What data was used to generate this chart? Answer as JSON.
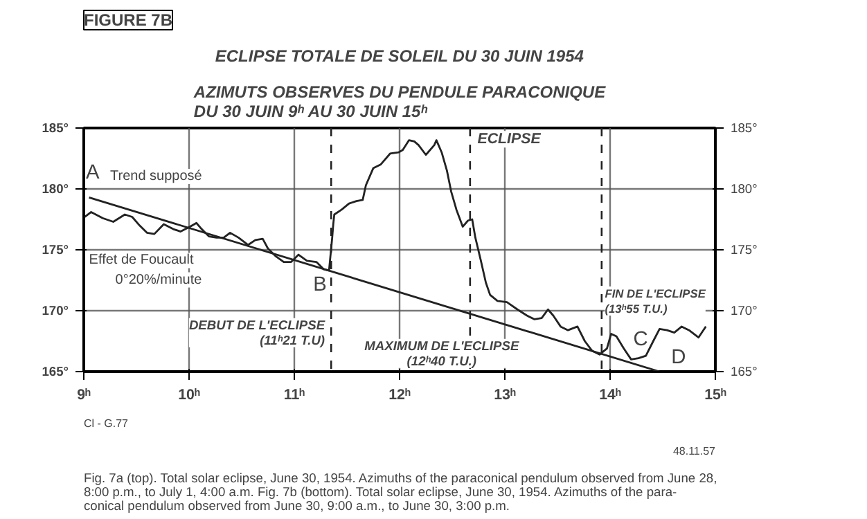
{
  "chart_data": {
    "type": "line",
    "title": "ECLIPSE TOTALE DE SOLEIL DU 30 JUIN 1954",
    "subtitle": "AZIMUTS OBSERVES DU PENDULE PARACONIQUE\nDU 30 JUIN 9ʰ AU 30 JUIN 15ʰ",
    "xlim": [
      9,
      15
    ],
    "ylim": [
      165,
      185
    ],
    "y2lim": [
      165,
      185
    ],
    "xticks": [
      {
        "value": 9,
        "label": "9ʰ"
      },
      {
        "value": 10,
        "label": "10ʰ"
      },
      {
        "value": 11,
        "label": "11ʰ"
      },
      {
        "value": 12,
        "label": "12ʰ"
      },
      {
        "value": 13,
        "label": "13ʰ"
      },
      {
        "value": 14,
        "label": "14ʰ"
      },
      {
        "value": 15,
        "label": "15ʰ"
      }
    ],
    "yticks": [
      {
        "value": 165,
        "label": "165°"
      },
      {
        "value": 170,
        "label": "170°"
      },
      {
        "value": 175,
        "label": "175°"
      },
      {
        "value": 180,
        "label": "180°"
      },
      {
        "value": 185,
        "label": "185°"
      }
    ],
    "y2ticks": [
      {
        "value": 165,
        "label": "165°"
      },
      {
        "value": 170,
        "label": "170°"
      },
      {
        "value": 175,
        "label": "175°"
      },
      {
        "value": 180,
        "label": "180°"
      },
      {
        "value": 185,
        "label": "185°"
      }
    ],
    "grid": true,
    "line_style": "solid",
    "series": [
      {
        "color": "#222222",
        "x": [
          9.01,
          9.07,
          9.18,
          9.28,
          9.39,
          9.46,
          9.53,
          9.6,
          9.67,
          9.76,
          9.85,
          9.92,
          10.01,
          10.07,
          10.12,
          10.19,
          10.26,
          10.33,
          10.39,
          10.47,
          10.56,
          10.63,
          10.7,
          10.75,
          10.82,
          10.9,
          10.97,
          11.04,
          11.12,
          11.21,
          11.28,
          11.33,
          11.36,
          11.37,
          11.38,
          11.45,
          11.52,
          11.59,
          11.65,
          11.68,
          11.75,
          11.82,
          11.91,
          11.99,
          12.03,
          12.09,
          12.14,
          12.18,
          12.25,
          12.33,
          12.35,
          12.4,
          12.45,
          12.49,
          12.54,
          12.6,
          12.65,
          12.69,
          12.72,
          12.77,
          12.82,
          12.86,
          12.93,
          13.02,
          13.12,
          13.21,
          13.28,
          13.35,
          13.41,
          13.46,
          13.53,
          13.6,
          13.69,
          13.76,
          13.83,
          13.9,
          13.97,
          14.01,
          14.06,
          14.13,
          14.2,
          14.27,
          14.34,
          14.41,
          14.47,
          14.54,
          14.61,
          14.68,
          14.75,
          14.84,
          14.91
        ],
        "values": [
          177.7,
          178.1,
          177.6,
          177.3,
          177.9,
          177.7,
          177.0,
          176.4,
          176.3,
          177.1,
          176.7,
          176.5,
          176.9,
          177.2,
          176.7,
          176.1,
          176.0,
          176.0,
          176.4,
          176.0,
          175.4,
          175.8,
          175.9,
          175.1,
          174.5,
          174.0,
          174.0,
          174.6,
          174.1,
          174.0,
          173.4,
          173.3,
          176.0,
          177.1,
          177.9,
          178.3,
          178.8,
          179.0,
          179.1,
          180.3,
          181.7,
          182.0,
          182.9,
          183.0,
          183.2,
          184.0,
          183.9,
          183.6,
          182.8,
          183.6,
          184.0,
          183.0,
          181.5,
          179.8,
          178.3,
          176.9,
          177.4,
          177.5,
          176.0,
          174.2,
          172.3,
          171.3,
          170.8,
          170.7,
          170.1,
          169.6,
          169.3,
          169.4,
          170.1,
          169.6,
          168.7,
          168.4,
          168.7,
          167.5,
          166.7,
          166.4,
          166.9,
          168.1,
          167.9,
          166.9,
          166.0,
          166.1,
          166.3,
          167.5,
          168.5,
          168.4,
          168.2,
          168.7,
          168.4,
          167.8,
          168.7
        ]
      },
      {
        "color": "#222222",
        "x": [
          9.05,
          14.47
        ],
        "values": [
          179.3,
          165.0
        ]
      }
    ],
    "ref_lines": [
      {
        "axis": "x",
        "value": 11.35,
        "label": "DEBUT DE L'ECLIPSE\n(11ʰ21 T.U)",
        "line_style": "dashed"
      },
      {
        "axis": "x",
        "value": 12.67,
        "label": "MAXIMUM DE L'ECLIPSE\n(12ʰ40 T.U.)",
        "line_style": "dashed"
      },
      {
        "axis": "x",
        "value": 13.92,
        "label": "FIN DE L'ECLIPSE\n(13ʰ55 T.U.)",
        "line_style": "dashed"
      }
    ],
    "annotations": [
      "FIGURE 7B",
      "A",
      "Trend supposé",
      "B",
      "ECLIPSE",
      "C",
      "D",
      "Effet de Foucault",
      "0°20%/minute",
      "Cl - G.77",
      "48.11.57",
      "Fig. 7a (top).   Total solar eclipse, June 30, 1954.   Azimuths of the paraconical pendulum observed from June 28,\n8:00 p.m., to July 1, 4:00 a.m.   Fig. 7b (bottom).   Total solar eclipse, June 30, 1954.   Azimuths of the para-\nconical pendulum observed from June 30, 9:00 a.m., to June 30, 3:00 p.m."
    ]
  }
}
